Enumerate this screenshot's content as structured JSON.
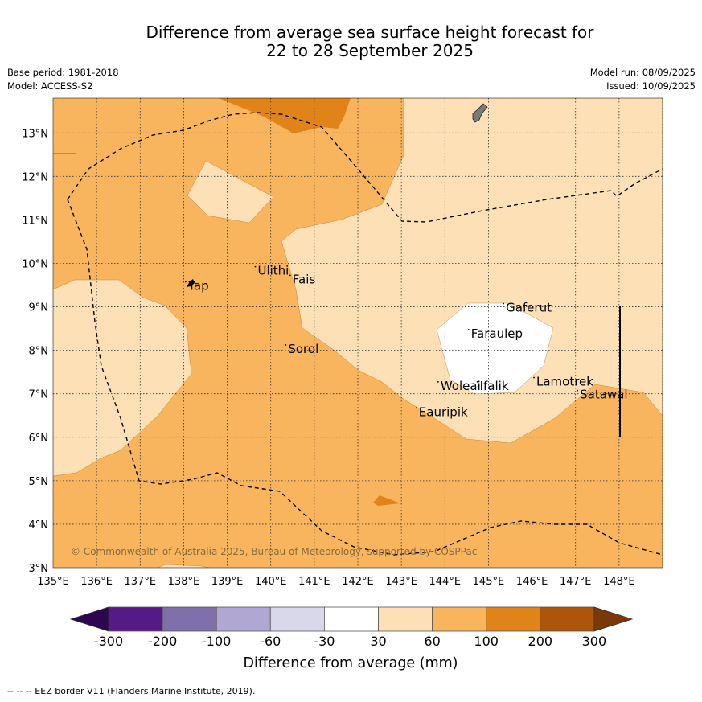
{
  "header": {
    "title_line1": "Difference from average sea surface height forecast for",
    "title_line2": "22 to 28 September 2025",
    "base_period": "Base period: 1981-2018",
    "model": "Model: ACCESS-S2",
    "model_run": "Model run: 08/09/2025",
    "issued": "Issued: 10/09/2025"
  },
  "map": {
    "lon_ticks": [
      "135°E",
      "136°E",
      "137°E",
      "138°E",
      "139°E",
      "140°E",
      "141°E",
      "142°E",
      "143°E",
      "144°E",
      "145°E",
      "146°E",
      "147°E",
      "148°E"
    ],
    "lat_ticks": [
      "13°N",
      "12°N",
      "11°N",
      "10°N",
      "9°N",
      "8°N",
      "7°N",
      "6°N",
      "5°N",
      "4°N",
      "3°N"
    ],
    "lon_range": [
      135,
      149
    ],
    "lat_range": [
      3,
      13.8
    ],
    "places": [
      {
        "name": "Yap",
        "lon": 138.1,
        "lat": 9.5
      },
      {
        "name": "Ulithi",
        "lon": 139.7,
        "lat": 9.85
      },
      {
        "name": "Fais",
        "lon": 140.5,
        "lat": 9.65
      },
      {
        "name": "Sorol",
        "lon": 140.4,
        "lat": 8.05
      },
      {
        "name": "Gaferut",
        "lon": 145.4,
        "lat": 9.0
      },
      {
        "name": "Faraulep",
        "lon": 144.6,
        "lat": 8.4
      },
      {
        "name": "Woleai",
        "lon": 143.9,
        "lat": 7.2
      },
      {
        "name": "Ifalik",
        "lon": 144.8,
        "lat": 7.2
      },
      {
        "name": "Lamotrek",
        "lon": 146.1,
        "lat": 7.3
      },
      {
        "name": "Satawal",
        "lon": 147.1,
        "lat": 7.0
      },
      {
        "name": "Eauripik",
        "lon": 143.4,
        "lat": 6.6
      }
    ],
    "copyright": "© Commonwealth of Australia 2025, Bureau of Meteorology, supported by COSPPac",
    "colors": {
      "c30_60": "#fde0b6",
      "c60_100": "#f9b55e",
      "c100_200": "#e0841a",
      "neutral": "#ffffff",
      "land": "#7a7a7a"
    }
  },
  "colorbar": {
    "title": "Difference from average (mm)",
    "labels": [
      "-300",
      "-200",
      "-100",
      "-60",
      "-30",
      "30",
      "60",
      "100",
      "200",
      "300"
    ],
    "colors": [
      "#551a86",
      "#7f6fab",
      "#b0a8d2",
      "#d9d8ea",
      "#ffffff",
      "#fde0b6",
      "#f9b55e",
      "#e0841a",
      "#ad5508"
    ],
    "low_extend_color": "#2e0650",
    "high_extend_color": "#7b3706"
  },
  "footer": {
    "legend_text": "--  --  -- EEZ border V11 (Flanders Marine Institute, 2019)."
  }
}
